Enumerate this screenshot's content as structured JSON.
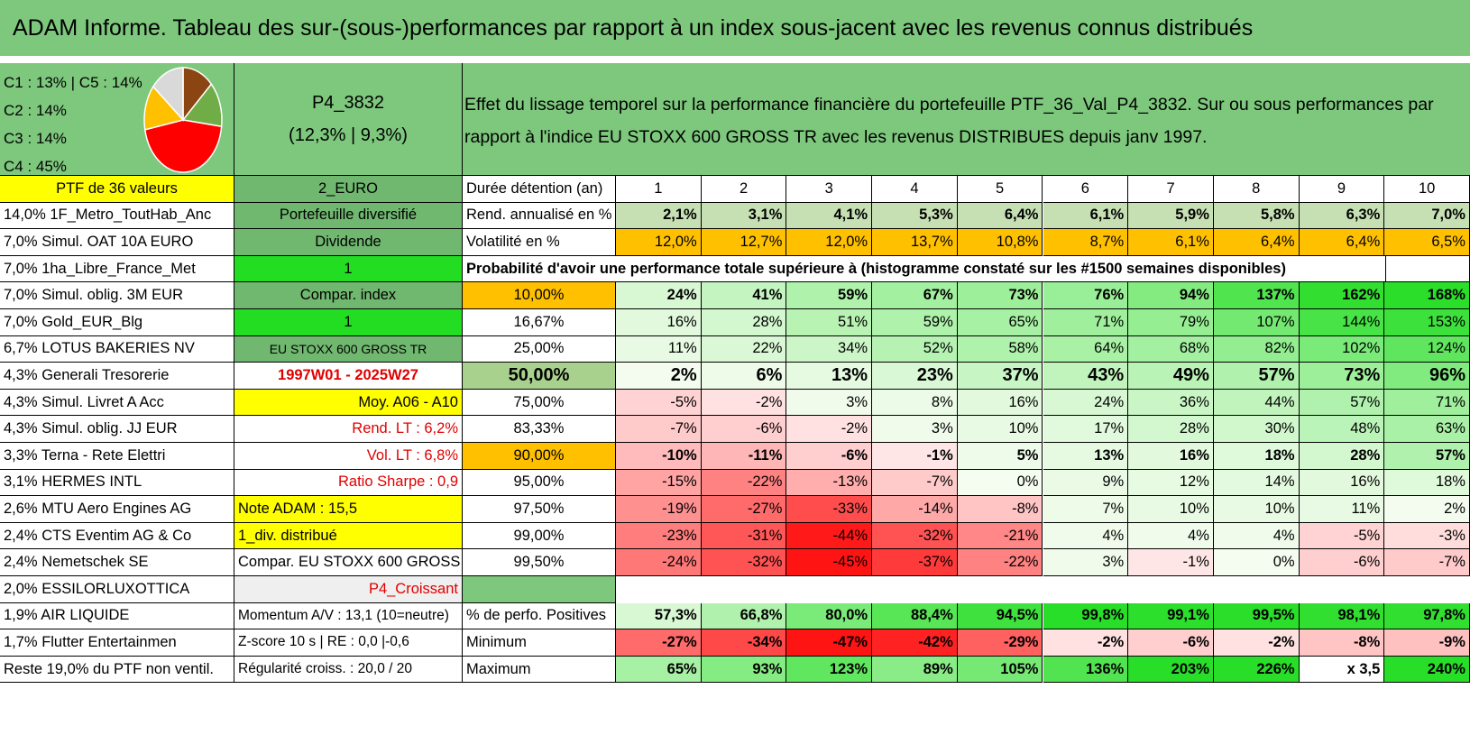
{
  "title": "ADAM Informe. Tableau des sur-(sous-)performances par rapport à un index sous-jacent avec les revenus connus distribués",
  "pie": {
    "legend": [
      "C1 : 13% | C5 : 14%",
      "C2 : 14%",
      "C3 : 14%",
      "C4 : 45%"
    ],
    "slices": [
      {
        "label": "C1",
        "value": 13,
        "color": "#8b4513"
      },
      {
        "label": "C2",
        "value": 14,
        "color": "#70ad47"
      },
      {
        "label": "C4",
        "value": 45,
        "color": "#ff0000"
      },
      {
        "label": "C3",
        "value": 14,
        "color": "#ffc000"
      },
      {
        "label": "C5",
        "value": 14,
        "color": "#d9d9d9"
      }
    ]
  },
  "p4": {
    "name": "P4_3832",
    "stats": "(12,3% | 9,3%)"
  },
  "description": "Effet du lissage temporel sur la performance financière du portefeuille PTF_36_Val_P4_3832. Sur ou sous performances par rapport à l'indice EU STOXX 600 GROSS TR avec les revenus DISTRIBUES depuis janv 1997.",
  "holdings_header": "PTF de 36 valeurs",
  "holdings": [
    "14,0% 1F_Metro_ToutHab_Anc",
    "7,0% Simul. OAT 10A EURO",
    "7,0% 1ha_Libre_France_Met",
    "7,0% Simul. oblig. 3M EUR",
    "7,0% Gold_EUR_Blg",
    "6,7% LOTUS BAKERIES NV",
    "4,3% Generali Tresorerie",
    "4,3% Simul. Livret A Acc",
    "4,3% Simul. oblig. JJ EUR",
    "3,3% Terna - Rete Elettri",
    "3,1% HERMES INTL",
    "2,6% MTU Aero Engines AG",
    "2,4% CTS Eventim AG & Co",
    "2,4% Nemetschek SE",
    "2,0% ESSILORLUXOTTICA",
    "1,9% AIR LIQUIDE",
    "1,7% Flutter Entertainmen",
    "Reste 19,0% du PTF non ventil."
  ],
  "info": {
    "currency": "2_EURO",
    "profile": "Portefeuille diversifié",
    "dividend": "Dividende",
    "one_a": "1",
    "compar_label": "Compar. index",
    "one_b": "1",
    "index_name": "EU STOXX 600 GROSS TR",
    "period": "1997W01 - 2025W27",
    "moy": "Moy. A06 - A10",
    "rend_lt": "Rend. LT : 6,2%",
    "vol_lt": "Vol. LT : 6,8%",
    "sharpe": "Ratio Sharpe : 0,9",
    "note": "Note ADAM : 15,5",
    "div": "1_div. distribué",
    "compar_full": "Compar. EU STOXX 600 GROSS TR",
    "croissant": "P4_Croissant",
    "momentum": "Momentum A/V : 13,1 (10=neutre)",
    "zscore": "Z-score 10 s | RE : 0,0 |-0,6",
    "regularite": "Régularité croiss. : 20,0 / 20"
  },
  "table": {
    "years_label": "Durée détention (an)",
    "years": [
      "1",
      "2",
      "3",
      "4",
      "5",
      "6",
      "7",
      "8",
      "9",
      "10"
    ],
    "rend_label": "Rend. annualisé en %",
    "rend": [
      "2,1%",
      "3,1%",
      "4,1%",
      "5,3%",
      "6,4%",
      "6,1%",
      "5,9%",
      "5,8%",
      "6,3%",
      "7,0%"
    ],
    "vol_label": "Volatilité en %",
    "vol": [
      "12,0%",
      "12,7%",
      "12,0%",
      "13,7%",
      "10,8%",
      "8,7%",
      "6,1%",
      "6,4%",
      "6,4%",
      "6,5%"
    ],
    "prob_title": "Probabilité d'avoir une performance totale supérieure à (histogramme constaté sur les #1500 semaines disponibles)",
    "prob_rows": [
      {
        "p": "10,00%",
        "v": [
          "24%",
          "41%",
          "59%",
          "67%",
          "73%",
          "76%",
          "94%",
          "137%",
          "162%",
          "168%"
        ]
      },
      {
        "p": "16,67%",
        "v": [
          "16%",
          "28%",
          "51%",
          "59%",
          "65%",
          "71%",
          "79%",
          "107%",
          "144%",
          "153%"
        ]
      },
      {
        "p": "25,00%",
        "v": [
          "11%",
          "22%",
          "34%",
          "52%",
          "58%",
          "64%",
          "68%",
          "82%",
          "102%",
          "124%"
        ]
      },
      {
        "p": "50,00%",
        "v": [
          "2%",
          "6%",
          "13%",
          "23%",
          "37%",
          "43%",
          "49%",
          "57%",
          "73%",
          "96%"
        ]
      },
      {
        "p": "75,00%",
        "v": [
          "-5%",
          "-2%",
          "3%",
          "8%",
          "16%",
          "24%",
          "36%",
          "44%",
          "57%",
          "71%"
        ]
      },
      {
        "p": "83,33%",
        "v": [
          "-7%",
          "-6%",
          "-2%",
          "3%",
          "10%",
          "17%",
          "28%",
          "30%",
          "48%",
          "63%"
        ]
      },
      {
        "p": "90,00%",
        "v": [
          "-10%",
          "-11%",
          "-6%",
          "-1%",
          "5%",
          "13%",
          "16%",
          "18%",
          "28%",
          "57%"
        ]
      },
      {
        "p": "95,00%",
        "v": [
          "-15%",
          "-22%",
          "-13%",
          "-7%",
          "0%",
          "9%",
          "12%",
          "14%",
          "16%",
          "18%"
        ]
      },
      {
        "p": "97,50%",
        "v": [
          "-19%",
          "-27%",
          "-33%",
          "-14%",
          "-8%",
          "7%",
          "10%",
          "10%",
          "11%",
          "2%"
        ]
      },
      {
        "p": "99,00%",
        "v": [
          "-23%",
          "-31%",
          "-44%",
          "-32%",
          "-21%",
          "4%",
          "4%",
          "4%",
          "-5%",
          "-3%"
        ]
      },
      {
        "p": "99,50%",
        "v": [
          "-24%",
          "-32%",
          "-45%",
          "-37%",
          "-22%",
          "3%",
          "-1%",
          "0%",
          "-6%",
          "-7%"
        ]
      }
    ],
    "pos_label": "% de perfo. Positives",
    "pos": [
      "57,3%",
      "66,8%",
      "80,0%",
      "88,4%",
      "94,5%",
      "99,8%",
      "99,1%",
      "99,5%",
      "98,1%",
      "97,8%"
    ],
    "min_label": "Minimum",
    "min": [
      "-27%",
      "-34%",
      "-47%",
      "-42%",
      "-29%",
      "-2%",
      "-6%",
      "-2%",
      "-8%",
      "-9%"
    ],
    "max_label": "Maximum",
    "max": [
      "65%",
      "93%",
      "123%",
      "89%",
      "105%",
      "136%",
      "203%",
      "226%",
      "x 3,5",
      "240%"
    ]
  },
  "colors": {
    "header_green": "#7ec87e",
    "yellow": "#ffff00",
    "lime": "#22dd22",
    "orange": "#ffc000",
    "text_red": "#e00000"
  }
}
